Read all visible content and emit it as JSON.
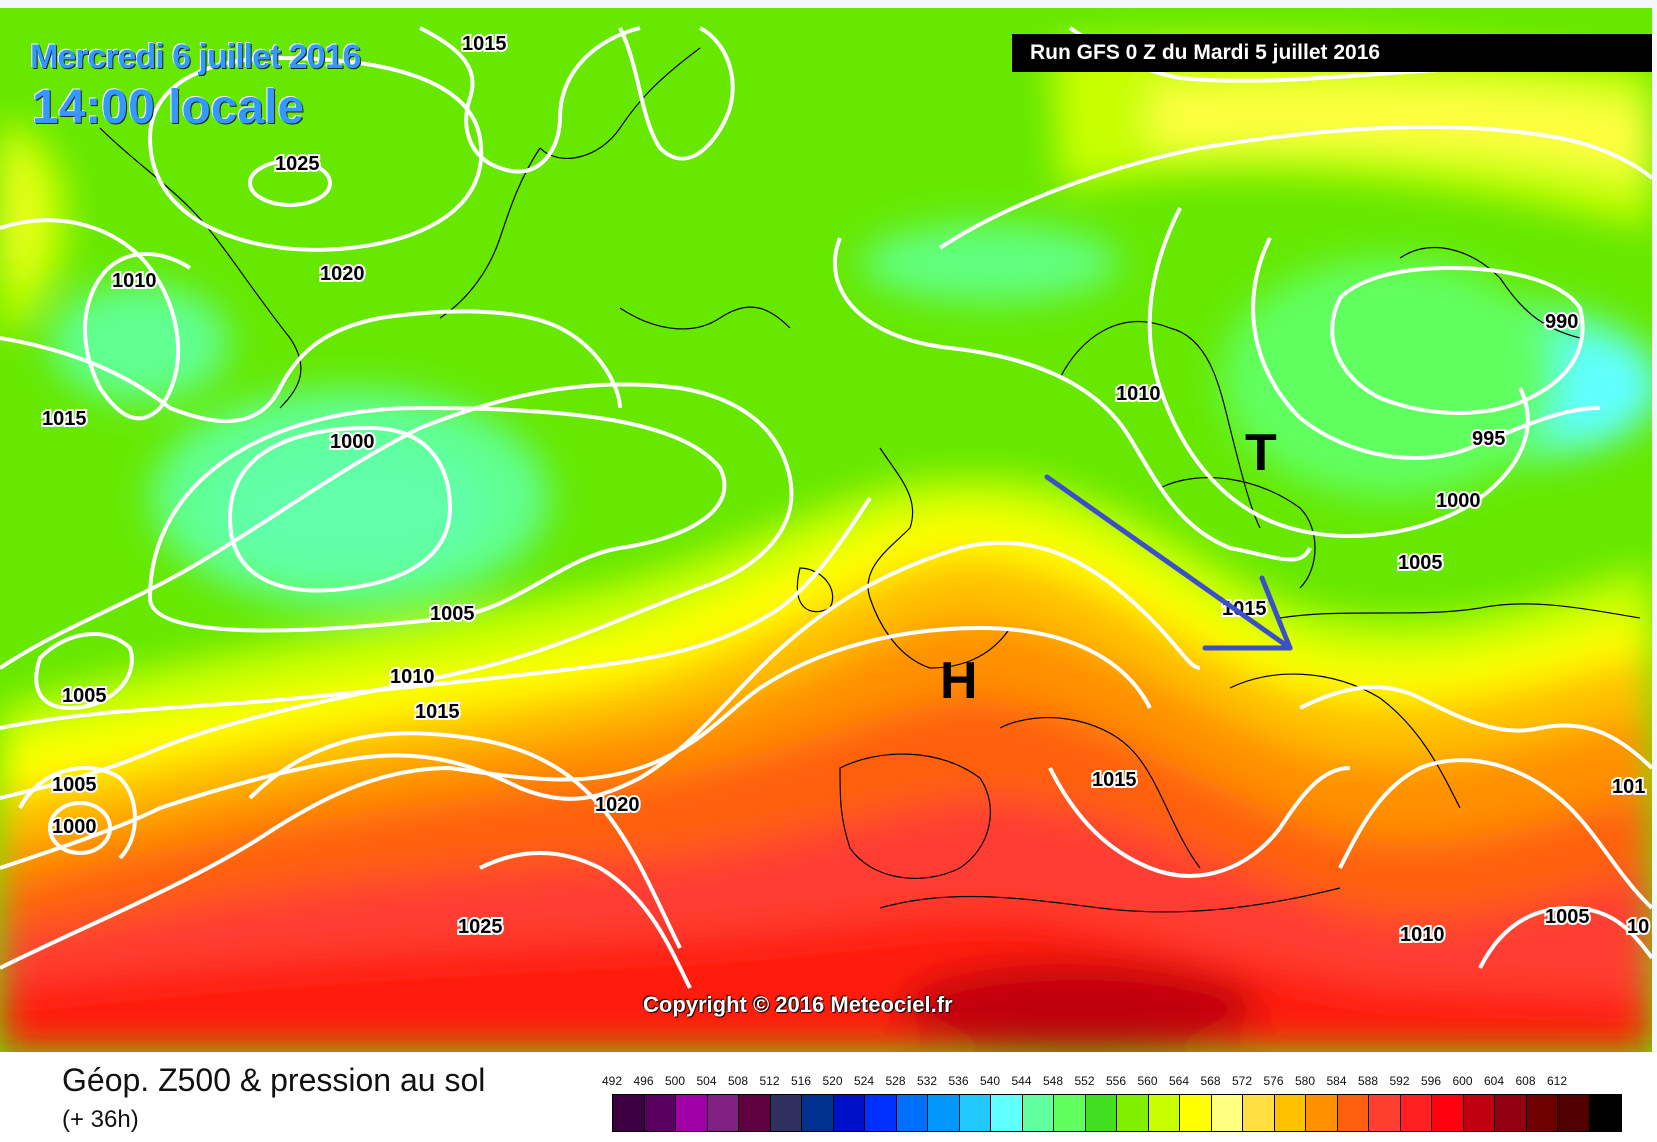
{
  "header": {
    "date_title": "Mercredi 6 juillet 2016",
    "time_title": "14:00 locale",
    "run_info": "Run GFS 0 Z du Mardi 5 juillet 2016"
  },
  "map": {
    "copyright": "Copyright © 2016 Meteociel.fr",
    "high_label": "H",
    "low_label": "T",
    "isobar_labels": [
      "1015",
      "1025",
      "1010",
      "1020",
      "1015",
      "1000",
      "1005",
      "1010",
      "1015",
      "1005",
      "1005",
      "1000",
      "1020",
      "1025",
      "1010",
      "990",
      "995",
      "1000",
      "1005",
      "1015",
      "1015",
      "101",
      "1005",
      "1010",
      "10"
    ],
    "arrow_color": "#3a4fc8",
    "colors": {
      "isobar": "#ffffff",
      "title_text": "#3399ff"
    }
  },
  "legend": {
    "caption": "Géop. Z500 & pression au sol",
    "forecast": "(+ 36h)",
    "scale_values": [
      "492",
      "496",
      "500",
      "504",
      "508",
      "512",
      "516",
      "520",
      "524",
      "528",
      "532",
      "536",
      "540",
      "544",
      "548",
      "552",
      "556",
      "560",
      "564",
      "568",
      "572",
      "576",
      "580",
      "584",
      "588",
      "592",
      "596",
      "600",
      "604",
      "608",
      "612"
    ],
    "scale_colors": [
      "#3d0040",
      "#5a0060",
      "#a000a8",
      "#802080",
      "#600040",
      "#303060",
      "#003090",
      "#0010c8",
      "#0030ff",
      "#0070ff",
      "#0098ff",
      "#20c8ff",
      "#60ffff",
      "#60ffa0",
      "#60ff60",
      "#40e020",
      "#80f000",
      "#c8ff00",
      "#ffff00",
      "#ffff80",
      "#ffe040",
      "#ffc000",
      "#ff9000",
      "#ff6010",
      "#ff4030",
      "#ff2020",
      "#ff0010",
      "#c00010",
      "#900010",
      "#700000",
      "#500000",
      "#000000"
    ]
  }
}
